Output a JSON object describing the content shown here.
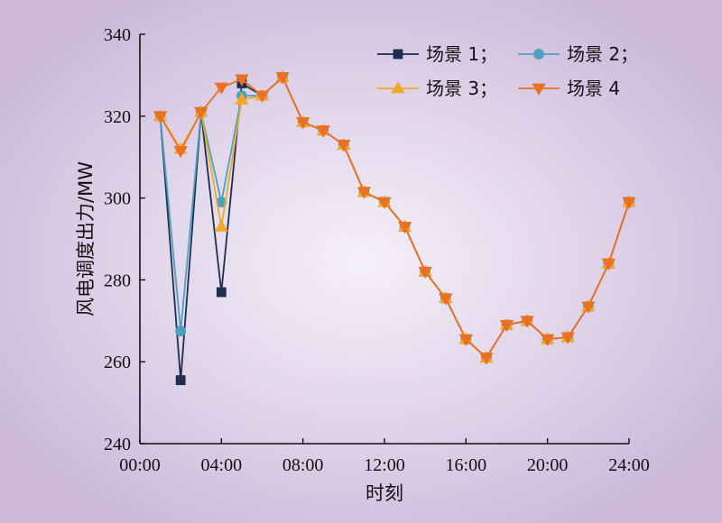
{
  "chart_data": {
    "type": "line",
    "xlabel": "时刻",
    "ylabel": "风电调度出力/MW",
    "xlim": [
      0,
      24
    ],
    "ylim": [
      240,
      340
    ],
    "x_ticks": [
      0,
      4,
      8,
      12,
      16,
      20,
      24
    ],
    "x_tick_labels": [
      "00:00",
      "04:00",
      "08:00",
      "12:00",
      "16:00",
      "20:00",
      "24:00"
    ],
    "y_ticks": [
      240,
      260,
      280,
      300,
      320,
      340
    ],
    "y_tick_labels": [
      "240",
      "260",
      "280",
      "300",
      "320",
      "340"
    ],
    "grid": false,
    "legend_position": "top-right",
    "x": [
      1,
      2,
      3,
      4,
      5,
      6,
      7,
      8,
      9,
      10,
      11,
      12,
      13,
      14,
      15,
      16,
      17,
      18,
      19,
      20,
      21,
      22,
      23,
      24
    ],
    "series": [
      {
        "name": "场景 1；",
        "legend_label": "场景 1；",
        "color": "#1f2d4f",
        "marker": "square",
        "values": [
          320,
          255.5,
          321,
          277,
          328,
          325,
          329.5,
          318.5,
          316.5,
          313,
          301.5,
          299,
          293,
          282,
          275.5,
          265.5,
          261,
          269,
          270,
          265.5,
          266,
          273.5,
          284,
          299
        ]
      },
      {
        "name": "场景 2；",
        "legend_label": "场景 2；",
        "color": "#4aa3bd",
        "marker": "circle",
        "values": [
          320,
          267.5,
          321,
          299,
          325,
          325,
          329.5,
          318.5,
          316.5,
          313,
          301.5,
          299,
          293,
          282,
          275.5,
          265.5,
          261,
          269,
          270,
          265.5,
          266,
          273.5,
          284,
          299
        ]
      },
      {
        "name": "场景 3；",
        "legend_label": "场景 3；",
        "color": "#f0a92a",
        "marker": "triangle-up",
        "values": [
          320,
          312,
          321,
          293,
          324,
          325,
          329.5,
          318.5,
          316.5,
          313,
          301.5,
          299,
          293,
          282,
          275.5,
          265.5,
          261,
          269,
          270,
          265.5,
          266,
          273.5,
          284,
          299
        ]
      },
      {
        "name": "场景 4",
        "legend_label": "场景 4",
        "color": "#ec7021",
        "marker": "triangle-down",
        "values": [
          320,
          311.5,
          321,
          327,
          329,
          325,
          329.5,
          318.5,
          316.5,
          313,
          301.5,
          299,
          293,
          282,
          275.5,
          265.5,
          261,
          269,
          270,
          265.5,
          266,
          273.5,
          284,
          299
        ]
      }
    ]
  }
}
